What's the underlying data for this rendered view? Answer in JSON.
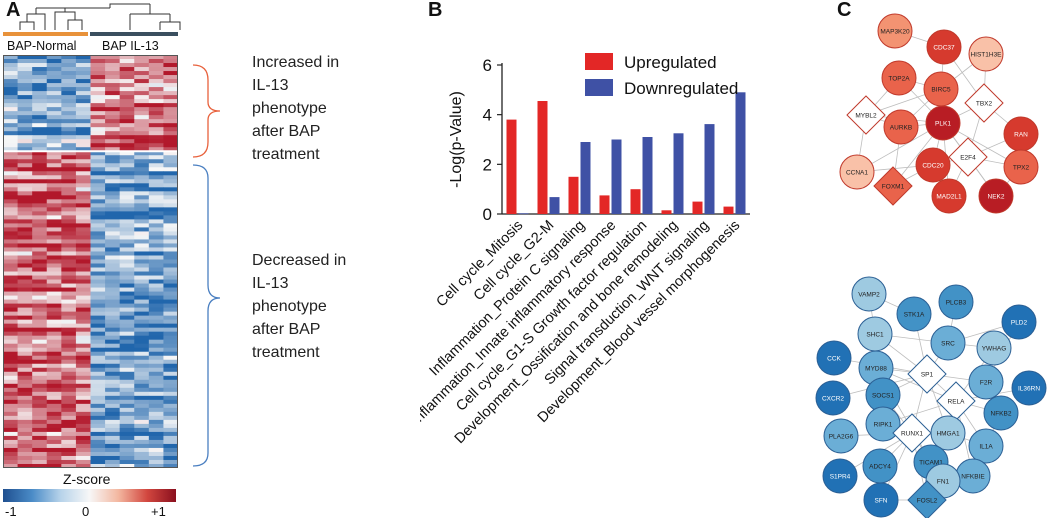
{
  "panel_a": {
    "letter": "A",
    "groups": [
      "BAP-Normal",
      "BAP IL-13"
    ],
    "colors": {
      "group1": "#e8923a",
      "group2": "#3a4f5f",
      "high": "#b2182b",
      "low": "#2166ac",
      "mid": "#f7f7f7",
      "bracket_up": "#e8613c",
      "bracket_down": "#4a7fc1"
    },
    "increased_text": [
      "Increased in",
      "IL-13",
      "phenotype",
      "after BAP",
      "treatment"
    ],
    "decreased_text": [
      "Decreased in",
      "IL-13",
      "phenotype",
      "after BAP",
      "treatment"
    ],
    "colorbar": {
      "title": "Z-score",
      "ticks": [
        "-1",
        "0",
        "+1"
      ]
    }
  },
  "panel_b": {
    "letter": "B"
  },
  "panel_c": {
    "letter": "C"
  },
  "chart_data": {
    "type": "bar",
    "title": "",
    "ylabel": "-Log(p-Value)",
    "xlabel": "",
    "ylim": [
      0,
      6
    ],
    "yticks": [
      0,
      2,
      4,
      6
    ],
    "categories": [
      "Cell cycle_Mitosis",
      "Cell cycle_G2-M",
      "Inflammation_Protein C signaling",
      "Inflammation_Innate inflammatory response",
      "Cell cycle_G1-S Growth factor regulation",
      "Development_Ossification and bone remodeling",
      "Signal transduction_WNT signaling",
      "Development_Blood vessel morphogenesis"
    ],
    "series": [
      {
        "name": "Upregulated",
        "color": "#e32726",
        "values": [
          3.8,
          4.55,
          1.5,
          0.75,
          1.0,
          0.15,
          0.5,
          0.3
        ]
      },
      {
        "name": "Downregulated",
        "color": "#3f51a5",
        "values": [
          0.03,
          0.68,
          2.9,
          3.0,
          3.1,
          3.25,
          3.62,
          4.9
        ]
      }
    ],
    "legend_position": "top-right"
  },
  "networks": {
    "upregulated": {
      "color_scale": [
        "#fde0d2",
        "#f9c1a8",
        "#f39372",
        "#e9634b",
        "#d63a2e",
        "#b81d24"
      ],
      "nodes": [
        {
          "id": "MAP3K20",
          "shape": "circle",
          "level": 2
        },
        {
          "id": "CDC37",
          "shape": "circle",
          "level": 4
        },
        {
          "id": "HIST1H3E",
          "shape": "circle",
          "level": 1
        },
        {
          "id": "TOP2A",
          "shape": "circle",
          "level": 3
        },
        {
          "id": "BIRC5",
          "shape": "circle",
          "level": 3
        },
        {
          "id": "TBX2",
          "shape": "diamond",
          "level": 0
        },
        {
          "id": "MYBL2",
          "shape": "diamond",
          "level": 0
        },
        {
          "id": "PLK1",
          "shape": "circle",
          "level": 5
        },
        {
          "id": "RAN",
          "shape": "circle",
          "level": 4
        },
        {
          "id": "AURKB",
          "shape": "circle",
          "level": 3
        },
        {
          "id": "E2F4",
          "shape": "diamond",
          "level": 0
        },
        {
          "id": "CCNA1",
          "shape": "circle",
          "level": 1
        },
        {
          "id": "CDC20",
          "shape": "circle",
          "level": 4
        },
        {
          "id": "TPX2",
          "shape": "circle",
          "level": 3
        },
        {
          "id": "FOXM1",
          "shape": "diamond",
          "level": 3
        },
        {
          "id": "MAD2L1",
          "shape": "circle",
          "level": 4
        },
        {
          "id": "NEK2",
          "shape": "circle",
          "level": 5
        }
      ]
    },
    "downregulated": {
      "color_scale": [
        "#c6dbef",
        "#9ecae1",
        "#6baed6",
        "#4292c6",
        "#2171b5"
      ],
      "nodes": [
        {
          "id": "VAMP2",
          "shape": "circle",
          "level": 1
        },
        {
          "id": "PLCB3",
          "shape": "circle",
          "level": 3
        },
        {
          "id": "STK1A",
          "shape": "circle",
          "level": 3
        },
        {
          "id": "SHC1",
          "shape": "circle",
          "level": 1
        },
        {
          "id": "SRC",
          "shape": "circle",
          "level": 2
        },
        {
          "id": "PLD2",
          "shape": "circle",
          "level": 4
        },
        {
          "id": "YWHAG",
          "shape": "circle",
          "level": 1
        },
        {
          "id": "CCK",
          "shape": "circle",
          "level": 4
        },
        {
          "id": "MYD88",
          "shape": "circle",
          "level": 2
        },
        {
          "id": "SP1",
          "shape": "diamond",
          "level": 0
        },
        {
          "id": "F2R",
          "shape": "circle",
          "level": 2
        },
        {
          "id": "CXCR2",
          "shape": "circle",
          "level": 4
        },
        {
          "id": "SOCS1",
          "shape": "circle",
          "level": 3
        },
        {
          "id": "RELA",
          "shape": "diamond",
          "level": 0
        },
        {
          "id": "NFKB2",
          "shape": "circle",
          "level": 3
        },
        {
          "id": "IL36RN",
          "shape": "circle",
          "level": 4
        },
        {
          "id": "PLA2G6",
          "shape": "circle",
          "level": 2
        },
        {
          "id": "RIPK1",
          "shape": "circle",
          "level": 2
        },
        {
          "id": "RUNX1",
          "shape": "diamond",
          "level": 0
        },
        {
          "id": "HMGA1",
          "shape": "circle",
          "level": 1
        },
        {
          "id": "IL1A",
          "shape": "circle",
          "level": 2
        },
        {
          "id": "S1PR4",
          "shape": "circle",
          "level": 4
        },
        {
          "id": "ADCY4",
          "shape": "circle",
          "level": 3
        },
        {
          "id": "TICAM1",
          "shape": "circle",
          "level": 3
        },
        {
          "id": "NFKBIE",
          "shape": "circle",
          "level": 2
        },
        {
          "id": "FN1",
          "shape": "circle",
          "level": 1
        },
        {
          "id": "SFN",
          "shape": "circle",
          "level": 4
        },
        {
          "id": "FOSL2",
          "shape": "diamond",
          "level": 3
        }
      ]
    }
  }
}
